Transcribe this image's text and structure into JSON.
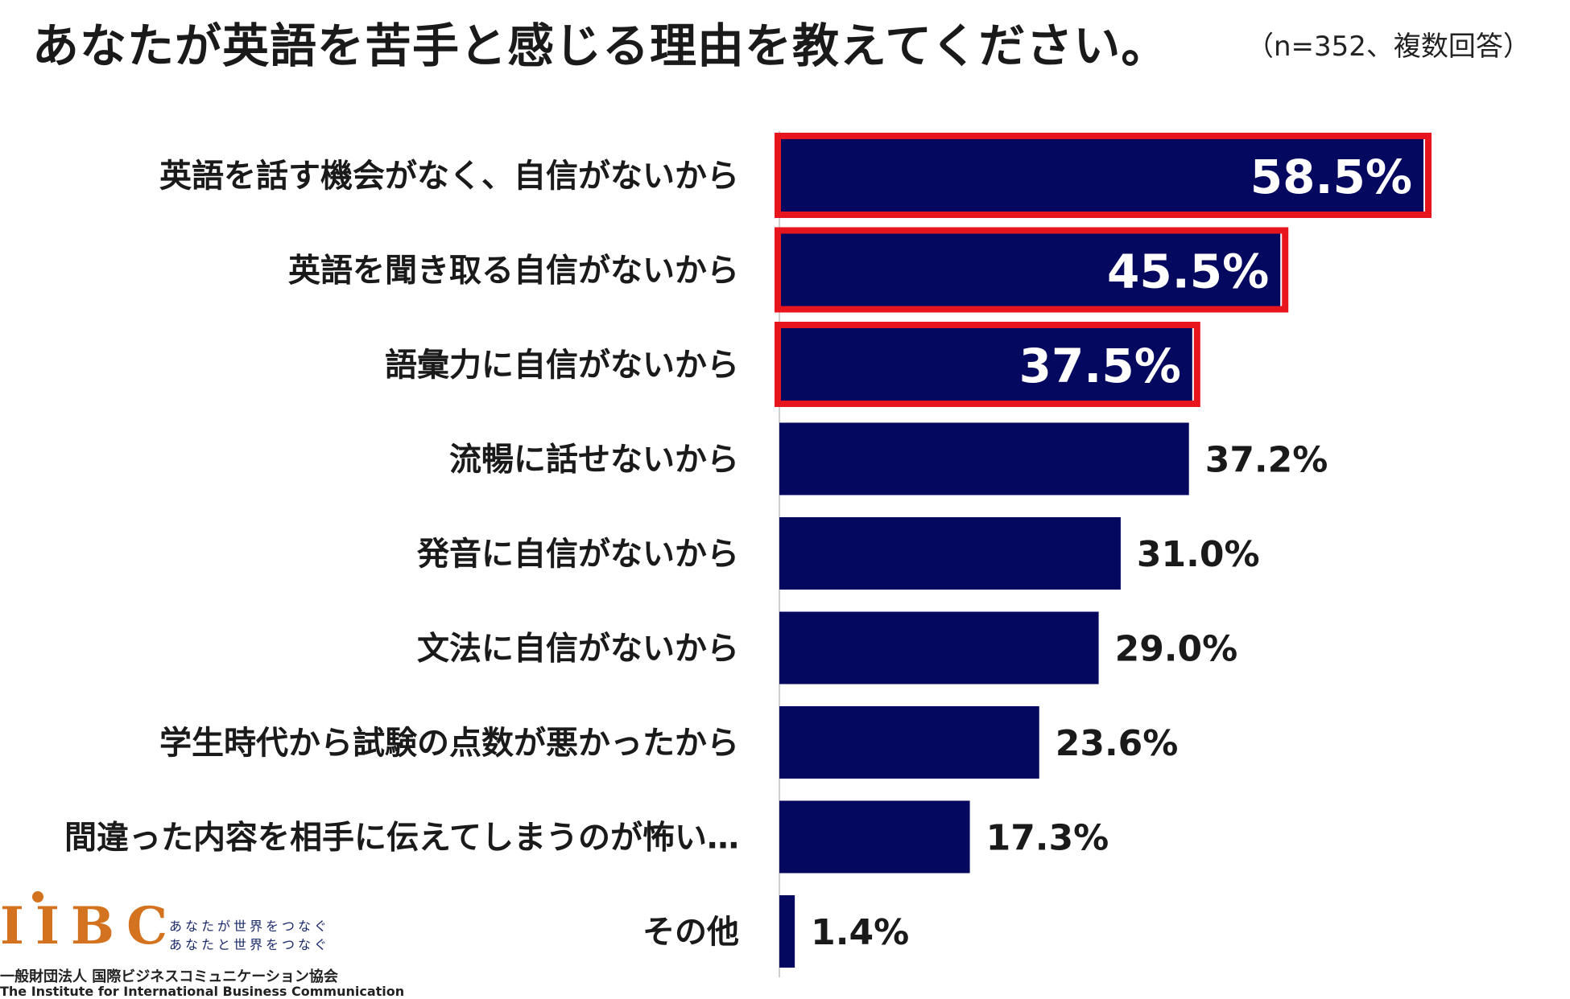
{
  "title": "あなたが英語を苦手と感じる理由を教えてください。",
  "note": "（n=352、複数回答）",
  "colors": {
    "bar": "#05085f",
    "highlight_border": "#e8141e",
    "value_inside": "#ffffff",
    "value_outside": "#1a1a1a",
    "logo_orange": "#d4731f",
    "logo_navy": "#1b2a6b"
  },
  "chart_data": {
    "type": "bar",
    "orientation": "horizontal",
    "categories": [
      "英語を話す機会がなく、自信がないから",
      "英語を聞き取る自信がないから",
      "語彙力に自信がないから",
      "流暢に話せないから",
      "発音に自信がないから",
      "文法に自信がないから",
      "学生時代から試験の点数が悪かったから",
      "間違った内容を相手に伝えてしまうのが怖い…",
      "その他"
    ],
    "values": [
      58.5,
      45.5,
      37.5,
      37.2,
      31.0,
      29.0,
      23.6,
      17.3,
      1.4
    ],
    "value_labels": [
      "58.5%",
      "45.5%",
      "37.5%",
      "37.2%",
      "31.0%",
      "29.0%",
      "23.6%",
      "17.3%",
      "1.4%"
    ],
    "highlighted": [
      true,
      true,
      true,
      false,
      false,
      false,
      false,
      false,
      false
    ],
    "unit": "%",
    "xlim": [
      0,
      58.5
    ]
  },
  "logo": {
    "letters": "IIBC",
    "tagline_1": "あなたが世界をつなぐ",
    "tagline_2": "あなたと世界をつなぐ",
    "org_jp": "一般財団法人 国際ビジネスコミュニケーション協会",
    "org_en": "The Institute for International Business Communication"
  }
}
